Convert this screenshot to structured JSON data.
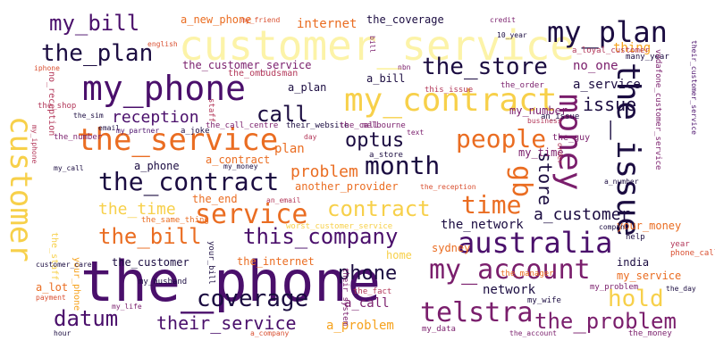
{
  "palette": {
    "background": "#ffffff",
    "colors": [
      "#fcf3a8",
      "#f7d04a",
      "#f6a21d",
      "#ea6d22",
      "#d94f30",
      "#b3385a",
      "#7a1e6c",
      "#4a0f6b",
      "#1b0c41"
    ]
  },
  "words": [
    "the_phone",
    "customer_service",
    "my_phone",
    "my_plan",
    "my_contract",
    "my_account",
    "the_service",
    "service",
    "australia",
    "telstra",
    "the_issue",
    "money",
    "time",
    "people",
    "the_contract",
    "the_bill",
    "this_company",
    "coverage",
    "datum",
    "the_problem",
    "customer",
    "month",
    "the_store",
    "the_plan",
    "my_bill",
    "optus",
    "call",
    "contract",
    "phone",
    "gb",
    "hold",
    "their_service",
    "reception",
    "problem",
    "store",
    "issue",
    "a_customer",
    "the_time",
    "the_network",
    "a_service",
    "network",
    "a_call",
    "a_problem",
    "internet",
    "the_coverage",
    "a_new_phone",
    "the_customer_service",
    "a_plan",
    "no_one",
    "thing",
    "a_bill",
    "the_customer",
    "the_internet",
    "india",
    "sydney",
    "home",
    "a_contract",
    "a_phone",
    "the_end",
    "another_provider",
    "your_money",
    "my_service",
    "my_number",
    "my_time",
    "a_lot",
    "the_ombudsman",
    "english",
    "iphone",
    "my_friend",
    "credit",
    "a_loyal_customer",
    "many_year",
    "the_order",
    "this_issue",
    "nbn",
    "an_issue",
    "the_guy",
    "business",
    "the_call_centre",
    "their_website",
    "the_call",
    "melbourne",
    "text",
    "a_store",
    "my_money",
    "the_reception",
    "an_email",
    "the_same_thing",
    "worst_customer_service",
    "your_phone",
    "the_staff",
    "the_shop",
    "the_sim",
    "the_number",
    "my_call",
    "email",
    "my_partner",
    "a_joke",
    "staff",
    "day",
    "company",
    "help",
    "a_number",
    "year",
    "phone_call",
    "your_bill",
    "my_husband",
    "the_fact",
    "the_manager",
    "their_system",
    "my_wife",
    "my_problem",
    "the_day",
    "payment",
    "hour",
    "my_life",
    "a_company",
    "my_data",
    "the_account",
    "the_money",
    "customer_care",
    "my_iphone",
    "vodafone_customer_service",
    "their_customer_service",
    "no_reception",
    "plan",
    "bill",
    "order",
    "10_year",
    "u"
  ]
}
